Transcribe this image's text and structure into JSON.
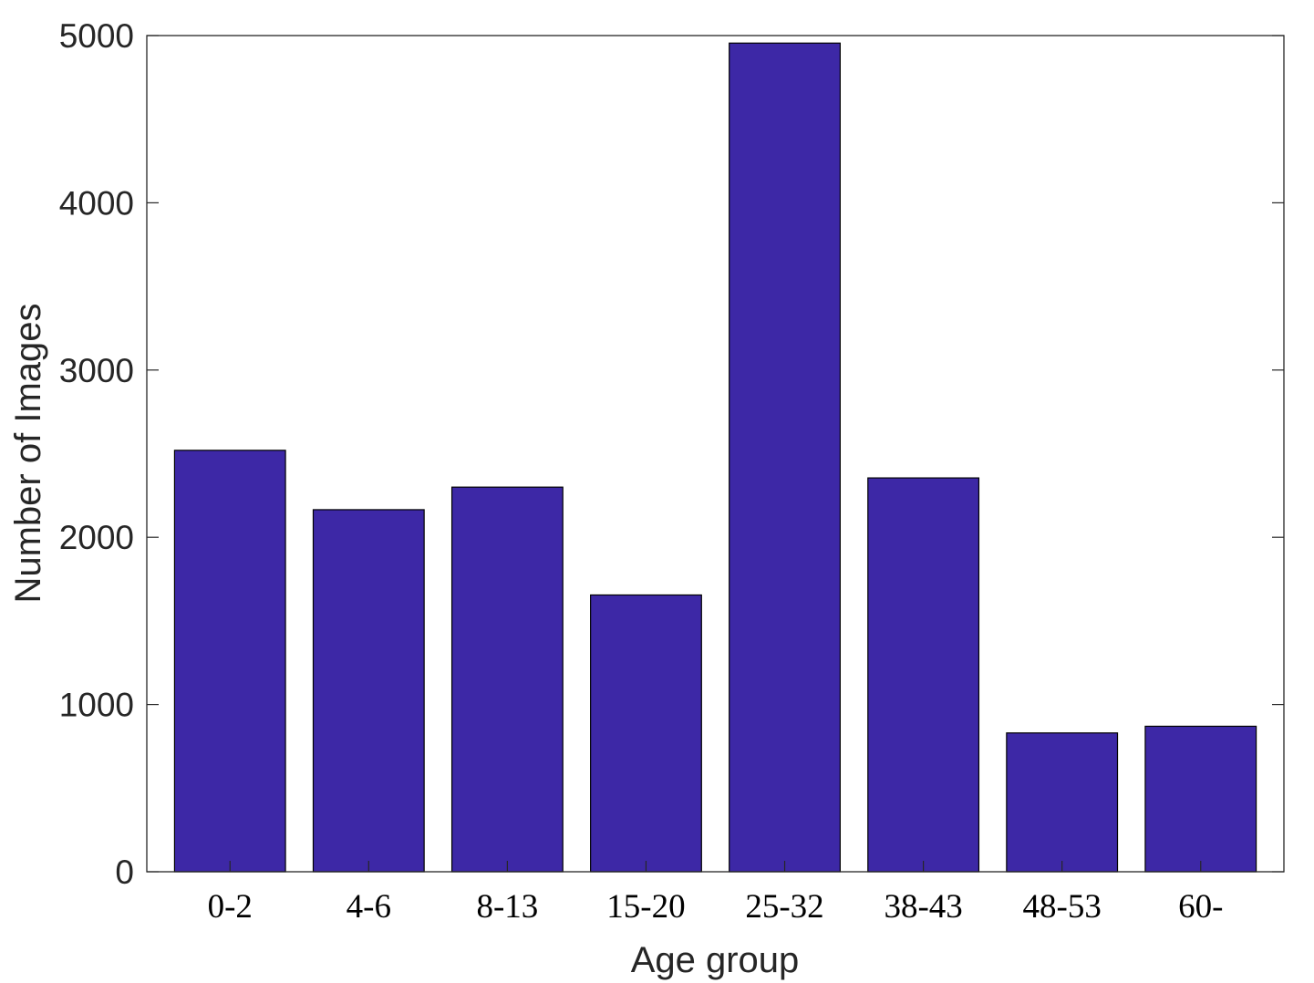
{
  "chart_data": {
    "type": "bar",
    "categories": [
      "0-2",
      "4-6",
      "8-13",
      "15-20",
      "25-32",
      "38-43",
      "48-53",
      "60-"
    ],
    "values": [
      2520,
      2165,
      2300,
      1655,
      4955,
      2355,
      830,
      870
    ],
    "xlabel": "Age group",
    "ylabel": "Number of Images",
    "ylim": [
      0,
      5000
    ],
    "yticks": [
      0,
      1000,
      2000,
      3000,
      4000,
      5000
    ],
    "grid": false,
    "bar_color": "#3d28a6",
    "bar_edge_color": "#000000"
  }
}
